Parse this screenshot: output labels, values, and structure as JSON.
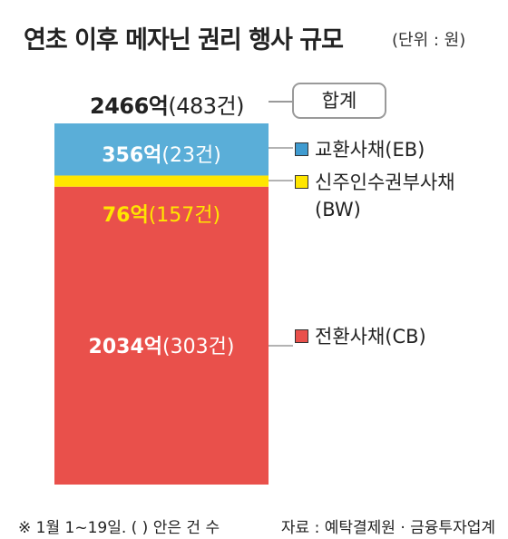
{
  "title": "연초 이후 메자닌 권리 행사 규모",
  "unit": "(단위 : 원)",
  "total": {
    "amount": "2466억",
    "count": "(483건)",
    "label": "합계"
  },
  "chart_data": {
    "type": "bar",
    "stacked": true,
    "unit": "억",
    "total": {
      "value": 2466,
      "count": 483
    },
    "series": [
      {
        "name": "전환사채(CB)",
        "value": 2034,
        "count": 303,
        "value_label": "2034억",
        "count_label": "(303건)",
        "color": "#e9504b",
        "label_color": "#ffffff",
        "swatch_color": "#e9504b"
      },
      {
        "name": "신주인수권부사채(BW)",
        "value": 76,
        "count": 157,
        "value_label": "76억",
        "count_label": "(157건)",
        "color": "#ffe600",
        "label_color": "#ffe600",
        "swatch_color": "#ffe600"
      },
      {
        "name": "교환사채(EB)",
        "value": 356,
        "count": 23,
        "value_label": "356억",
        "count_label": "(23건)",
        "color": "#5aaed8",
        "label_color": "#ffffff",
        "swatch_color": "#3f9bd0"
      }
    ]
  },
  "legend": [
    {
      "line1": "교환사채(EB)",
      "line2": ""
    },
    {
      "line1": "신주인수권부사채",
      "line2": "(BW)"
    },
    {
      "line1": "전환사채(CB)",
      "line2": ""
    }
  ],
  "footer": {
    "note": "※ 1월 1~19일. (  ) 안은 건 수",
    "source": "자료 : 예탁결제원 · 금융투자업계"
  }
}
